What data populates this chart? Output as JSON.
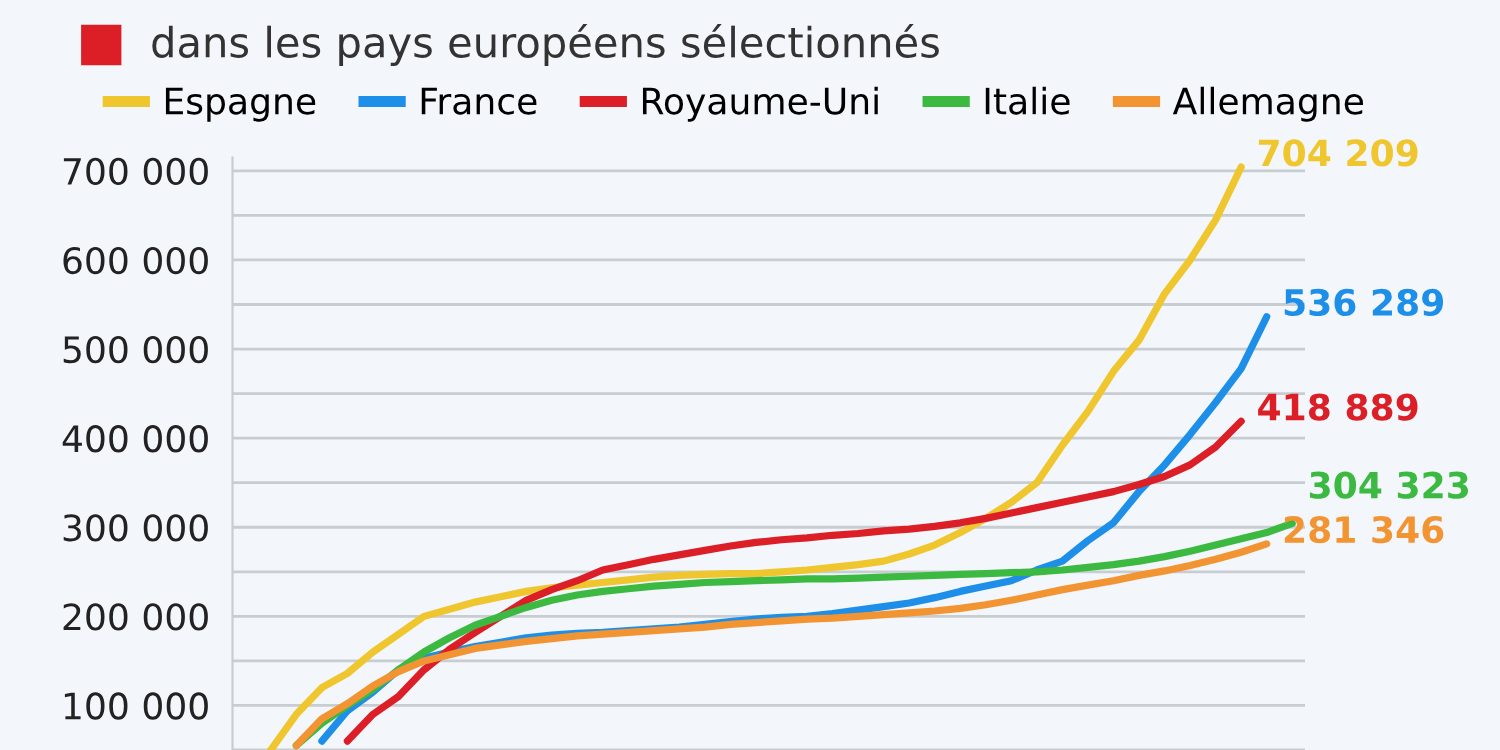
{
  "chart_data": {
    "type": "line",
    "title": "dans les pays européens sélectionnés",
    "categories": [
      null,
      null,
      null,
      null,
      null,
      null,
      null,
      null,
      null,
      null,
      null,
      null,
      null,
      null,
      null,
      null,
      null,
      null,
      null,
      null,
      null,
      null,
      null,
      null,
      null,
      null,
      null,
      null,
      null,
      null,
      null,
      null,
      null,
      null,
      null,
      null,
      null,
      null,
      null,
      null,
      null,
      null
    ],
    "series": [
      {
        "name": "Espagne",
        "color": "#f0c62e",
        "values": [
          null,
          50000,
          90000,
          120000,
          136000,
          160000,
          180000,
          200000,
          208000,
          216000,
          222000,
          228000,
          232000,
          235000,
          238000,
          241000,
          244000,
          246000,
          247000,
          248000,
          248000,
          250000,
          252000,
          255000,
          258000,
          262000,
          270000,
          280000,
          294000,
          310000,
          328000,
          350000,
          392000,
          430000,
          475000,
          510000,
          562000,
          600000,
          645000,
          704209,
          null,
          null
        ],
        "value_labels": [
          null,
          null,
          null,
          null,
          null,
          null,
          null,
          null,
          null,
          null,
          null,
          null,
          null,
          null,
          null,
          null,
          null,
          null,
          null,
          null,
          null,
          null,
          null,
          null,
          null,
          null,
          null,
          null,
          null,
          null,
          null,
          null,
          null,
          null,
          null,
          null,
          null,
          null,
          null,
          "704 209",
          null,
          null
        ]
      },
      {
        "name": "France",
        "color": "#1d8fe8",
        "values": [
          null,
          null,
          null,
          60000,
          94000,
          115000,
          140000,
          153000,
          160000,
          166000,
          171000,
          176000,
          179000,
          181000,
          182000,
          184000,
          186000,
          188000,
          191000,
          194000,
          197000,
          199000,
          200000,
          203000,
          207000,
          211000,
          215000,
          221000,
          228000,
          234000,
          240000,
          252000,
          262000,
          285000,
          305000,
          340000,
          370000,
          404000,
          440000,
          478000,
          536289,
          null
        ],
        "value_labels": [
          null,
          null,
          null,
          null,
          null,
          null,
          null,
          null,
          null,
          null,
          null,
          null,
          null,
          null,
          null,
          null,
          null,
          null,
          null,
          null,
          null,
          null,
          null,
          null,
          null,
          null,
          null,
          null,
          null,
          null,
          null,
          null,
          null,
          null,
          null,
          null,
          null,
          null,
          null,
          null,
          "536 289",
          null
        ]
      },
      {
        "name": "Royaume-Uni",
        "color": "#dc1f26",
        "values": [
          null,
          null,
          null,
          null,
          60000,
          90000,
          110000,
          140000,
          163000,
          182000,
          200000,
          218000,
          230000,
          240000,
          252000,
          258000,
          264000,
          269000,
          274000,
          279000,
          283000,
          286000,
          288000,
          291000,
          293000,
          296000,
          298000,
          301000,
          305000,
          310000,
          316000,
          322000,
          328000,
          334000,
          340000,
          348000,
          357000,
          370000,
          390000,
          418889,
          null,
          null
        ],
        "value_labels": [
          null,
          null,
          null,
          null,
          null,
          null,
          null,
          null,
          null,
          null,
          null,
          null,
          null,
          null,
          null,
          null,
          null,
          null,
          null,
          null,
          null,
          null,
          null,
          null,
          null,
          null,
          null,
          null,
          null,
          null,
          null,
          null,
          null,
          null,
          null,
          null,
          null,
          null,
          null,
          "418 889",
          null,
          null
        ]
      },
      {
        "name": "Italie",
        "color": "#3cb940",
        "values": [
          null,
          null,
          55000,
          80000,
          100000,
          118000,
          140000,
          160000,
          176000,
          190000,
          200000,
          210000,
          218000,
          224000,
          228000,
          231000,
          234000,
          236000,
          238000,
          239000,
          240000,
          241000,
          242000,
          242000,
          243000,
          244000,
          245000,
          246000,
          247000,
          248000,
          249000,
          250000,
          252000,
          255000,
          258000,
          262000,
          267000,
          273000,
          280000,
          287000,
          294000,
          304323
        ],
        "value_labels": [
          null,
          null,
          null,
          null,
          null,
          null,
          null,
          null,
          null,
          null,
          null,
          null,
          null,
          null,
          null,
          null,
          null,
          null,
          null,
          null,
          null,
          null,
          null,
          null,
          null,
          null,
          null,
          null,
          null,
          null,
          null,
          null,
          null,
          null,
          null,
          null,
          null,
          null,
          null,
          null,
          null,
          "304 323"
        ]
      },
      {
        "name": "Allemagne",
        "color": "#f39433",
        "values": [
          null,
          null,
          55000,
          85000,
          102000,
          122000,
          138000,
          150000,
          157000,
          164000,
          168000,
          172000,
          175000,
          178000,
          180000,
          182000,
          184000,
          186000,
          188000,
          191000,
          193000,
          195000,
          197000,
          198000,
          200000,
          202000,
          204000,
          206000,
          209000,
          213000,
          218000,
          224000,
          230000,
          235000,
          240000,
          246000,
          251000,
          257000,
          264000,
          272000,
          281346,
          null
        ],
        "value_labels": [
          null,
          null,
          null,
          null,
          null,
          null,
          null,
          null,
          null,
          null,
          null,
          null,
          null,
          null,
          null,
          null,
          null,
          null,
          null,
          null,
          null,
          null,
          null,
          null,
          null,
          null,
          null,
          null,
          null,
          null,
          null,
          null,
          null,
          null,
          null,
          null,
          null,
          null,
          null,
          null,
          "281 346",
          null
        ]
      }
    ],
    "ylim": [
      50000,
      715000
    ],
    "yticks": [
      {
        "value": 50000,
        "label": null
      },
      {
        "value": 100000,
        "label": "100 000"
      },
      {
        "value": 150000,
        "label": null
      },
      {
        "value": 200000,
        "label": "200 000"
      },
      {
        "value": 250000,
        "label": null
      },
      {
        "value": 300000,
        "label": "300 000"
      },
      {
        "value": 350000,
        "label": null
      },
      {
        "value": 400000,
        "label": "400 000"
      },
      {
        "value": 450000,
        "label": null
      },
      {
        "value": 500000,
        "label": "500 000"
      },
      {
        "value": 550000,
        "label": null
      },
      {
        "value": 600000,
        "label": "600 000"
      },
      {
        "value": 650000,
        "label": null
      },
      {
        "value": 700000,
        "label": "700 000"
      }
    ],
    "grid": "y",
    "legend": "top",
    "tick_labels": "y",
    "marker": "none",
    "line_style": "solid"
  }
}
